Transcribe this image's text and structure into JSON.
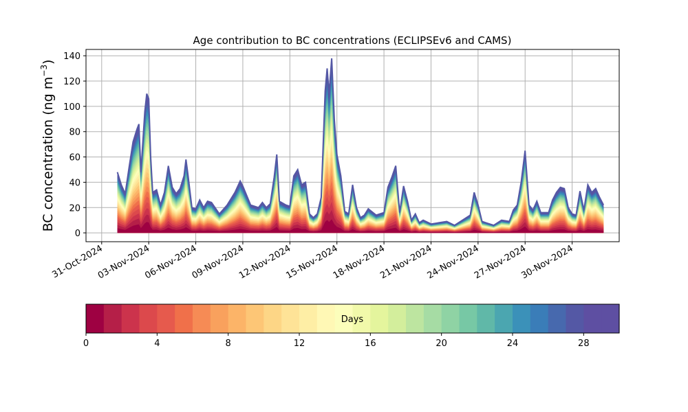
{
  "chart_data": {
    "type": "area",
    "title": "Age contribution to BC concentrations (ECLIPSEv6 and CAMS)",
    "ylabel_main": "BC concentration (ng m",
    "ylabel_sup": "−3",
    "ylabel_close": ")",
    "xlabel": "",
    "ylim": [
      -7,
      145
    ],
    "xlim": [
      "2024-10-30",
      "2024-12-03"
    ],
    "x_range": [
      "2024-11-01",
      "2024-12-02"
    ],
    "grid": true,
    "yticks": [
      "0",
      "20",
      "40",
      "60",
      "80",
      "100",
      "120",
      "140"
    ],
    "xticks": [
      {
        "date": "2024-10-31",
        "label": "31-Oct-2024"
      },
      {
        "date": "2024-11-03",
        "label": "03-Nov-2024"
      },
      {
        "date": "2024-11-06",
        "label": "06-Nov-2024"
      },
      {
        "date": "2024-11-09",
        "label": "09-Nov-2024"
      },
      {
        "date": "2024-11-12",
        "label": "12-Nov-2024"
      },
      {
        "date": "2024-11-15",
        "label": "15-Nov-2024"
      },
      {
        "date": "2024-11-18",
        "label": "18-Nov-2024"
      },
      {
        "date": "2024-11-21",
        "label": "21-Nov-2024"
      },
      {
        "date": "2024-11-24",
        "label": "24-Nov-2024"
      },
      {
        "date": "2024-11-27",
        "label": "27-Nov-2024"
      },
      {
        "date": "2024-11-30",
        "label": "30-Nov-2024"
      }
    ],
    "total_series": [
      [
        "2024-11-01 00:00",
        48
      ],
      [
        "2024-11-01 06:00",
        38
      ],
      [
        "2024-11-01 12:00",
        31
      ],
      [
        "2024-11-01 18:00",
        52
      ],
      [
        "2024-11-02 00:00",
        72
      ],
      [
        "2024-11-02 06:00",
        82
      ],
      [
        "2024-11-02 09:00",
        86
      ],
      [
        "2024-11-02 12:00",
        48
      ],
      [
        "2024-11-02 18:00",
        96
      ],
      [
        "2024-11-02 21:00",
        110
      ],
      [
        "2024-11-03 00:00",
        106
      ],
      [
        "2024-11-03 03:00",
        60
      ],
      [
        "2024-11-03 06:00",
        32
      ],
      [
        "2024-11-03 12:00",
        34
      ],
      [
        "2024-11-03 18:00",
        22
      ],
      [
        "2024-11-04 00:00",
        32
      ],
      [
        "2024-11-04 06:00",
        53
      ],
      [
        "2024-11-04 12:00",
        36
      ],
      [
        "2024-11-04 18:00",
        31
      ],
      [
        "2024-11-05 00:00",
        35
      ],
      [
        "2024-11-05 06:00",
        45
      ],
      [
        "2024-11-05 09:00",
        58
      ],
      [
        "2024-11-05 12:00",
        46
      ],
      [
        "2024-11-05 18:00",
        20
      ],
      [
        "2024-11-06 00:00",
        19
      ],
      [
        "2024-11-06 06:00",
        26
      ],
      [
        "2024-11-06 12:00",
        20
      ],
      [
        "2024-11-06 18:00",
        25
      ],
      [
        "2024-11-07 00:00",
        24
      ],
      [
        "2024-11-07 12:00",
        15
      ],
      [
        "2024-11-08 00:00",
        22
      ],
      [
        "2024-11-08 12:00",
        32
      ],
      [
        "2024-11-08 20:00",
        41
      ],
      [
        "2024-11-09 00:00",
        37
      ],
      [
        "2024-11-09 12:00",
        22
      ],
      [
        "2024-11-10 00:00",
        20
      ],
      [
        "2024-11-10 06:00",
        24
      ],
      [
        "2024-11-10 12:00",
        20
      ],
      [
        "2024-11-10 18:00",
        23
      ],
      [
        "2024-11-11 00:00",
        44
      ],
      [
        "2024-11-11 04:00",
        62
      ],
      [
        "2024-11-11 08:00",
        25
      ],
      [
        "2024-11-11 18:00",
        22
      ],
      [
        "2024-11-12 00:00",
        21
      ],
      [
        "2024-11-12 06:00",
        45
      ],
      [
        "2024-11-12 12:00",
        50
      ],
      [
        "2024-11-12 18:00",
        38
      ],
      [
        "2024-11-13 00:00",
        40
      ],
      [
        "2024-11-13 06:00",
        15
      ],
      [
        "2024-11-13 12:00",
        12
      ],
      [
        "2024-11-13 18:00",
        15
      ],
      [
        "2024-11-14 00:00",
        28
      ],
      [
        "2024-11-14 06:00",
        112
      ],
      [
        "2024-11-14 09:00",
        130
      ],
      [
        "2024-11-14 12:00",
        110
      ],
      [
        "2024-11-14 16:00",
        138
      ],
      [
        "2024-11-14 20:00",
        90
      ],
      [
        "2024-11-15 00:00",
        62
      ],
      [
        "2024-11-15 06:00",
        45
      ],
      [
        "2024-11-15 12:00",
        17
      ],
      [
        "2024-11-15 18:00",
        15
      ],
      [
        "2024-11-16 00:00",
        38
      ],
      [
        "2024-11-16 06:00",
        20
      ],
      [
        "2024-11-16 12:00",
        12
      ],
      [
        "2024-11-16 18:00",
        14
      ],
      [
        "2024-11-17 00:00",
        19
      ],
      [
        "2024-11-17 12:00",
        14
      ],
      [
        "2024-11-18 00:00",
        16
      ],
      [
        "2024-11-18 06:00",
        36
      ],
      [
        "2024-11-18 12:00",
        44
      ],
      [
        "2024-11-18 18:00",
        53
      ],
      [
        "2024-11-19 00:00",
        16
      ],
      [
        "2024-11-19 06:00",
        37
      ],
      [
        "2024-11-19 12:00",
        25
      ],
      [
        "2024-11-19 18:00",
        10
      ],
      [
        "2024-11-20 00:00",
        15
      ],
      [
        "2024-11-20 06:00",
        8
      ],
      [
        "2024-11-20 12:00",
        10
      ],
      [
        "2024-11-21 00:00",
        7
      ],
      [
        "2024-11-21 12:00",
        8
      ],
      [
        "2024-11-22 00:00",
        9
      ],
      [
        "2024-11-22 12:00",
        6
      ],
      [
        "2024-11-23 00:00",
        10
      ],
      [
        "2024-11-23 12:00",
        14
      ],
      [
        "2024-11-23 18:00",
        32
      ],
      [
        "2024-11-24 00:00",
        22
      ],
      [
        "2024-11-24 06:00",
        9
      ],
      [
        "2024-11-24 12:00",
        8
      ],
      [
        "2024-11-25 00:00",
        6
      ],
      [
        "2024-11-25 12:00",
        10
      ],
      [
        "2024-11-26 00:00",
        9
      ],
      [
        "2024-11-26 06:00",
        18
      ],
      [
        "2024-11-26 12:00",
        22
      ],
      [
        "2024-11-26 18:00",
        40
      ],
      [
        "2024-11-27 00:00",
        65
      ],
      [
        "2024-11-27 06:00",
        22
      ],
      [
        "2024-11-27 12:00",
        18
      ],
      [
        "2024-11-27 18:00",
        25
      ],
      [
        "2024-11-28 00:00",
        16
      ],
      [
        "2024-11-28 12:00",
        16
      ],
      [
        "2024-11-28 18:00",
        26
      ],
      [
        "2024-11-29 00:00",
        32
      ],
      [
        "2024-11-29 06:00",
        36
      ],
      [
        "2024-11-29 12:00",
        35
      ],
      [
        "2024-11-29 18:00",
        20
      ],
      [
        "2024-11-30 00:00",
        15
      ],
      [
        "2024-11-30 06:00",
        14
      ],
      [
        "2024-11-30 12:00",
        33
      ],
      [
        "2024-11-30 18:00",
        18
      ],
      [
        "2024-12-01 00:00",
        38
      ],
      [
        "2024-12-01 06:00",
        32
      ],
      [
        "2024-12-01 12:00",
        35
      ],
      [
        "2024-12-01 18:00",
        28
      ],
      [
        "2024-12-02 00:00",
        22
      ]
    ],
    "colorbar": {
      "label": "Days",
      "min": 0,
      "max": 30,
      "levels": 30,
      "ticks": [
        "0",
        "4",
        "8",
        "12",
        "16",
        "20",
        "24",
        "28"
      ],
      "colors": [
        "#9e0142",
        "#b51f48",
        "#cc334c",
        "#dc494c",
        "#e65a4d",
        "#f0704a",
        "#f68b55",
        "#f9a15d",
        "#fcb468",
        "#fdc676",
        "#fdd686",
        "#fee397",
        "#feeea5",
        "#fff8b5",
        "#fcfebb",
        "#f1f9aa",
        "#e4f59d",
        "#d3ee9c",
        "#bde5a0",
        "#a6dca4",
        "#8fd3a4",
        "#77c8a5",
        "#60b8a8",
        "#4ba6b0",
        "#3b91b9",
        "#3a7db8",
        "#4769ae",
        "#5458a5",
        "#5e4fa2",
        "#5e4fa2"
      ]
    }
  }
}
